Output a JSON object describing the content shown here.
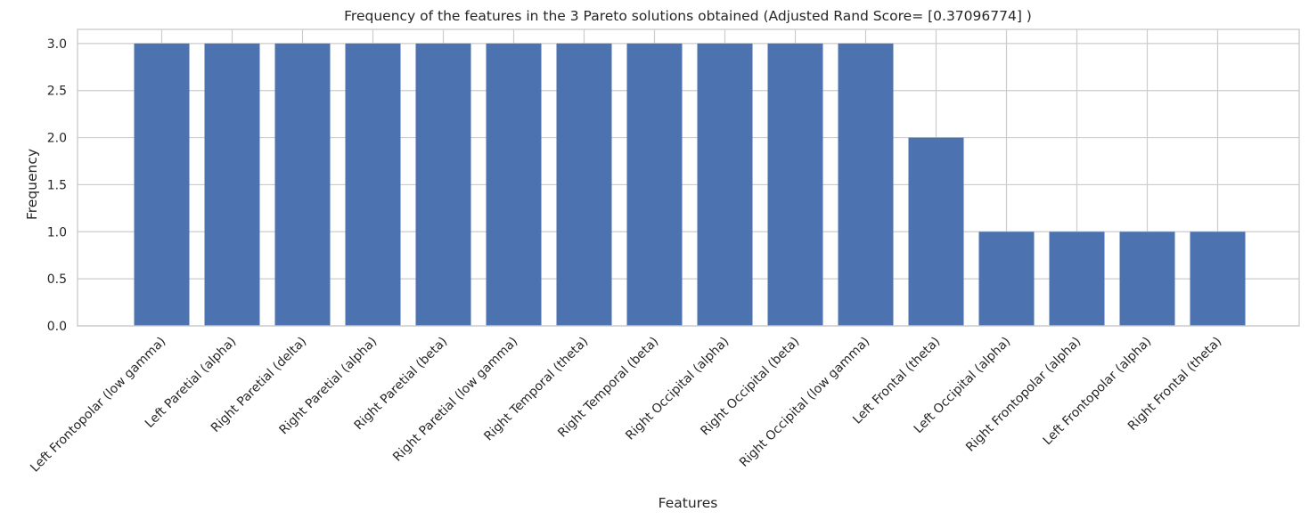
{
  "chart_data": {
    "type": "bar",
    "title": "Frequency of the features in the 3 Pareto solutions obtained (Adjusted Rand Score= [0.37096774] )",
    "xlabel": "Features",
    "ylabel": "Frequency",
    "ylim": [
      0,
      3.15
    ],
    "yticks": [
      "0.0",
      "0.5",
      "1.0",
      "1.5",
      "2.0",
      "2.5",
      "3.0"
    ],
    "grid": true,
    "bar_color": "#4c72b0",
    "categories": [
      "Left Frontopolar (low gamma)",
      "Left Paretial (alpha)",
      "Right Paretial (delta)",
      "Right Paretial (alpha)",
      "Right Paretial (beta)",
      "Right Paretial (low gamma)",
      "Right Temporal (theta)",
      "Right Temporal (beta)",
      "Right Occipital (alpha)",
      "Right Occipital (beta)",
      "Right Occipital (low gamma)",
      "Left Frontal (theta)",
      "Left Occipital (alpha)",
      "Right Frontopolar (alpha)",
      "Left Frontopolar (alpha)",
      "Right Frontal (theta)"
    ],
    "values": [
      3,
      3,
      3,
      3,
      3,
      3,
      3,
      3,
      3,
      3,
      3,
      2,
      1,
      1,
      1,
      1
    ]
  }
}
